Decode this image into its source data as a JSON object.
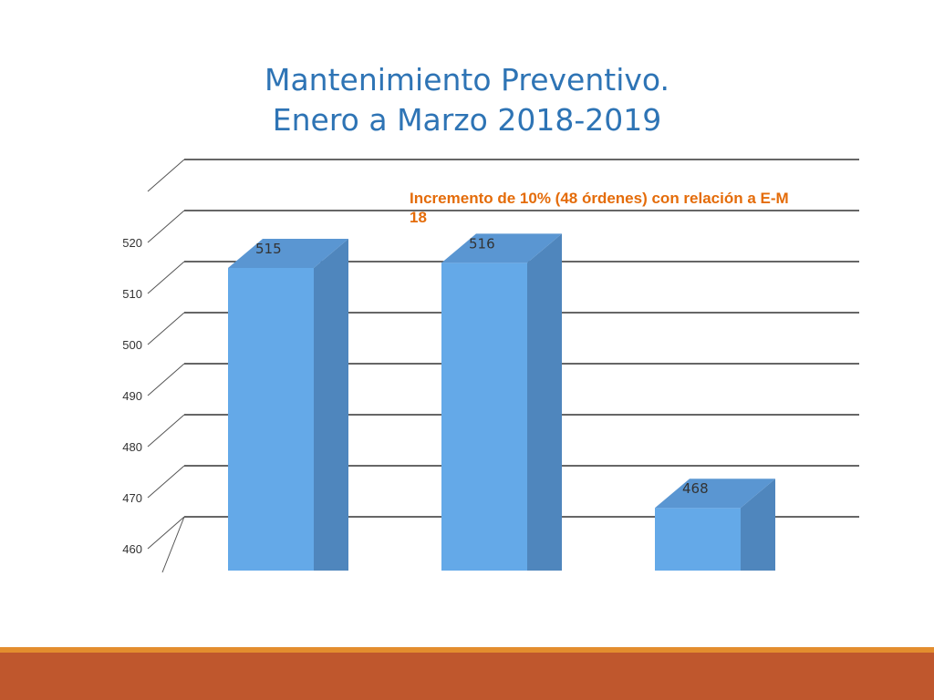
{
  "title": {
    "line1": "Mantenimiento Preventivo.",
    "line2": "Enero a Marzo 2018-2019"
  },
  "chart_data": {
    "type": "bar",
    "style": "3d-column",
    "categories": [
      "",
      "",
      ""
    ],
    "values": [
      515,
      516,
      468
    ],
    "data_labels": [
      "515",
      "516",
      "468"
    ],
    "ylim": [
      460,
      530
    ],
    "yticks": [
      460,
      470,
      480,
      490,
      500,
      510,
      520
    ],
    "grid": true,
    "annotation": {
      "line1": "Incremento de 10% (48 órdenes) con relación a E-M",
      "line2": "18"
    }
  },
  "colors": {
    "title": "#2e74b5",
    "bar_front": "#64a9e8",
    "bar_side": "#4f86bd",
    "bar_top": "#5a96d2",
    "annotation": "#e46c0a",
    "footer_bar": "#bf572d",
    "footer_line": "#e38d2e"
  }
}
